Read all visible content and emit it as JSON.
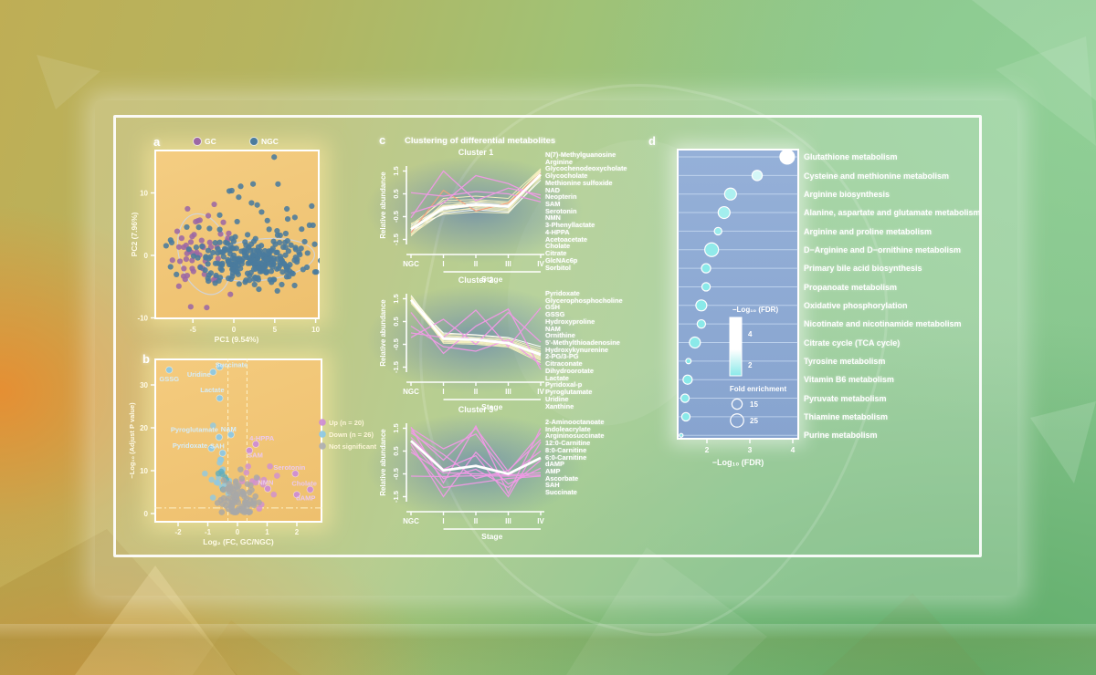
{
  "figure": {
    "panels": {
      "a": {
        "letter": "a"
      },
      "b": {
        "letter": "b"
      },
      "c": {
        "letter": "c",
        "title": "Clustering of differential metabolites"
      },
      "d": {
        "letter": "d"
      }
    }
  },
  "chart_data": [
    {
      "id": "pca",
      "type": "scatter",
      "xlabel": "PC1 (9.54%)",
      "ylabel": "PC2 (7.96%)",
      "xticks": [
        -5,
        0,
        5,
        10
      ],
      "yticks": [
        -10,
        0,
        10
      ],
      "xlim": [
        -9.7,
        10.5
      ],
      "ylim": [
        -10.3,
        17.0
      ],
      "legend": [
        {
          "label": "GC",
          "color": "#9c68a4"
        },
        {
          "label": "NGC",
          "color": "#4a7b9d"
        }
      ],
      "point_groups": [
        {
          "name": "GC",
          "color": "#9c68a4",
          "n": 55,
          "cx": -3.9,
          "cy": 0.6,
          "sx": 1.9,
          "sy": 3.4,
          "seed": 11
        },
        {
          "name": "NGC-core",
          "color": "#4a7b9d",
          "n": 240,
          "cx": 2.3,
          "cy": -0.9,
          "sx": 3.2,
          "sy": 1.9,
          "seed": 22
        },
        {
          "name": "NGC-spread",
          "color": "#4a7b9d",
          "n": 55,
          "cx": 1.0,
          "cy": 3.5,
          "sx": 4.8,
          "sy": 4.2,
          "seed": 33
        }
      ],
      "ellipses": [
        {
          "cx": -3.6,
          "cy": 0.2,
          "rx": 3.1,
          "ry": 6.6,
          "rot": -15
        },
        {
          "cx": 3.2,
          "cy": -0.7,
          "rx": 6.7,
          "ry": 3.3,
          "rot": -6
        }
      ]
    },
    {
      "id": "volcano",
      "type": "scatter",
      "xlabel": "Log₂ (FC, GC/NGC)",
      "ylabel": "−Log₁₀ (Adjust P value)",
      "xticks": [
        -2,
        -1,
        0,
        1,
        2
      ],
      "yticks": [
        0,
        10,
        20,
        30
      ],
      "xlim": [
        -2.85,
        2.85
      ],
      "ylim": [
        0,
        36.2
      ],
      "thresholds": {
        "vlines": [
          -0.32,
          0.32
        ],
        "hline": 1.3
      },
      "legend": [
        {
          "label": "Up (n = 20)",
          "color": "#cf8ed3"
        },
        {
          "label": "Down (n = 26)",
          "color": "#8ec9e4"
        },
        {
          "label": "Not significant",
          "color": "#b0b0b0"
        }
      ],
      "group_colors": {
        "up": "#cf8ed3",
        "down": "#8ec9e4",
        "ns": "#a8a8a8",
        "teal": "#62aebc"
      },
      "labeled_points": [
        {
          "name": "GSSG",
          "x": -2.3,
          "y": 33.5,
          "group": "down",
          "lx": -2.3,
          "ly": 31.4
        },
        {
          "name": "Uridine",
          "x": -0.82,
          "y": 33.0,
          "group": "down",
          "lx": -1.3,
          "ly": 32.4
        },
        {
          "name": "Succinate",
          "x": -0.6,
          "y": 34.2,
          "group": "down",
          "lx": -0.2,
          "ly": 34.7
        },
        {
          "name": "Lactate",
          "x": -0.6,
          "y": 26.9,
          "group": "down",
          "lx": -0.85,
          "ly": 28.8
        },
        {
          "name": "Pyroglutamate",
          "x": -0.62,
          "y": 17.8,
          "group": "down",
          "lx": -1.45,
          "ly": 19.6
        },
        {
          "name": "NAM",
          "x": -0.22,
          "y": 18.4,
          "group": "down",
          "lx": -0.3,
          "ly": 19.7
        },
        {
          "name": "Pyridoxate",
          "x": -0.88,
          "y": 15.2,
          "group": "down",
          "lx": -1.6,
          "ly": 15.9
        },
        {
          "name": "SAH",
          "x": -0.5,
          "y": 14.1,
          "group": "down",
          "lx": -0.68,
          "ly": 15.7
        },
        {
          "name": "4-HPPA",
          "x": 0.62,
          "y": 16.2,
          "group": "up",
          "lx": 0.82,
          "ly": 17.6
        },
        {
          "name": "SAM",
          "x": 0.4,
          "y": 14.7,
          "group": "up",
          "lx": 0.6,
          "ly": 13.6
        },
        {
          "name": "Serotonin",
          "x": 1.95,
          "y": 9.3,
          "group": "up",
          "lx": 1.75,
          "ly": 10.7
        },
        {
          "name": "NMN",
          "x": 1.02,
          "y": 5.8,
          "group": "up",
          "lx": 0.95,
          "ly": 7.2
        },
        {
          "name": "Cholate",
          "x": 2.45,
          "y": 5.6,
          "group": "up",
          "lx": 2.25,
          "ly": 7.0
        },
        {
          "name": "dAMP",
          "x": 2.0,
          "y": 4.4,
          "group": "up",
          "lx": 2.3,
          "ly": 3.6
        }
      ],
      "clouds": [
        {
          "group": "down",
          "n": 16,
          "cx": -0.72,
          "cy": 8.8,
          "sx": 0.3,
          "sy": 3.3,
          "seed": 5
        },
        {
          "group": "teal",
          "n": 6,
          "cx": -0.45,
          "cy": 8.0,
          "sx": 0.1,
          "sy": 1.8,
          "seed": 9
        },
        {
          "group": "up",
          "n": 13,
          "cx": 0.55,
          "cy": 6.5,
          "sx": 0.28,
          "sy": 3.1,
          "seed": 6
        },
        {
          "group": "ns",
          "n": 85,
          "cx": 0.0,
          "cy": 3.4,
          "sx": 0.3,
          "sy": 2.6,
          "seed": 7
        }
      ]
    },
    {
      "id": "clusters",
      "type": "line",
      "xlabel": "Stage",
      "ylabel": "Relative abundance",
      "categories": [
        "NGC",
        "I",
        "II",
        "III",
        "IV"
      ],
      "yticks": [
        1.5,
        0.5,
        -0.5,
        -1.5
      ],
      "line_colors": {
        "pale": "#f5efc0",
        "white": "#ffffff",
        "pink": "#f09ae6",
        "salmon": "#f0a080",
        "mean": "#ffffff"
      },
      "clusters": [
        {
          "title": "Cluster 1",
          "metabolites": [
            "N(7)-Methylguanosine",
            "Arginine",
            "Glycochenodeoxycholate",
            "Glycocholate",
            "Methionine sulfoxide",
            "NAD",
            "Neopterin",
            "SAM",
            "Serotonin",
            "NMN",
            "3-Phenyllactate",
            "4-HPPA",
            "Acetoacetate",
            "Cholate",
            "Citrate",
            "GlcNAc6p",
            "Sorbitol"
          ],
          "mean": [
            -1.05,
            -0.12,
            0.02,
            -0.05,
            1.35
          ],
          "lines": [
            {
              "c": "pale",
              "v": [
                -1.3,
                -0.3,
                -0.1,
                -0.2,
                1.5
              ]
            },
            {
              "c": "pale",
              "v": [
                -1.2,
                0.1,
                0.15,
                0.1,
                1.55
              ]
            },
            {
              "c": "white",
              "v": [
                -1.1,
                -0.2,
                0,
                -0.1,
                1.45
              ]
            },
            {
              "c": "pale",
              "v": [
                -0.95,
                -0.4,
                -0.3,
                -0.35,
                1.2
              ]
            },
            {
              "c": "pale",
              "v": [
                -1.0,
                0.3,
                0.4,
                0.3,
                1.6
              ]
            },
            {
              "c": "white",
              "v": [
                -0.9,
                -0.05,
                0.1,
                0,
                1.3
              ]
            },
            {
              "c": "pale",
              "v": [
                -1.25,
                -0.15,
                -0.05,
                -0.15,
                1.4
              ]
            },
            {
              "c": "pale",
              "v": [
                -0.85,
                0.2,
                0.25,
                0.15,
                1.5
              ]
            },
            {
              "c": "white",
              "v": [
                -1.15,
                -0.35,
                -0.2,
                -0.3,
                1.1
              ]
            },
            {
              "c": "pale",
              "v": [
                -1.05,
                0,
                0.05,
                -0.05,
                1.25
              ]
            },
            {
              "c": "pale",
              "v": [
                -0.8,
                -0.25,
                -0.15,
                -0.25,
                1.35
              ]
            },
            {
              "c": "pale",
              "v": [
                -1.35,
                -0.05,
                0.2,
                0.05,
                1.6
              ]
            },
            {
              "c": "salmon",
              "v": [
                -1.2,
                0.65,
                -0.25,
                0.1,
                1.4
              ]
            },
            {
              "c": "pink",
              "v": [
                -0.55,
                1.5,
                0.2,
                0.75,
                0.45
              ]
            },
            {
              "c": "pink",
              "v": [
                -0.35,
                0.1,
                1.3,
                0.95,
                0.3
              ]
            },
            {
              "c": "pink",
              "v": [
                0.55,
                0.4,
                0.6,
                0.5,
                0.15
              ]
            }
          ]
        },
        {
          "title": "Cluster 2",
          "metabolites": [
            "Pyridoxate",
            "Glycerophosphocholine",
            "GSH",
            "GSSG",
            "Hydroxyproline",
            "NAM",
            "Ornithine",
            "5'-Methylthioadenosine",
            "Hydroxykynurenine",
            "2-PG/3-PG",
            "Citraconate",
            "Dihydroorotate",
            "Lactate",
            "Pyridoxal-p",
            "Pyroglutamate",
            "Uridine",
            "Xanthine"
          ],
          "mean": [
            1.45,
            -0.25,
            -0.3,
            -0.45,
            -0.95
          ],
          "lines": [
            {
              "c": "pale",
              "v": [
                1.6,
                -0.1,
                -0.2,
                -0.3,
                -0.8
              ]
            },
            {
              "c": "pale",
              "v": [
                1.5,
                -0.35,
                -0.4,
                -0.55,
                -1.1
              ]
            },
            {
              "c": "white",
              "v": [
                1.4,
                -0.2,
                -0.25,
                -0.4,
                -0.9
              ]
            },
            {
              "c": "pale",
              "v": [
                1.55,
                -0.05,
                -0.1,
                -0.25,
                -0.7
              ]
            },
            {
              "c": "pale",
              "v": [
                1.35,
                -0.4,
                -0.45,
                -0.6,
                -1.2
              ]
            },
            {
              "c": "white",
              "v": [
                1.65,
                -0.25,
                -0.3,
                -0.45,
                -1.0
              ]
            },
            {
              "c": "pale",
              "v": [
                1.45,
                -0.15,
                -0.2,
                -0.35,
                -0.85
              ]
            },
            {
              "c": "pale",
              "v": [
                1.3,
                -0.3,
                -0.38,
                -0.5,
                -1.05
              ]
            },
            {
              "c": "pale",
              "v": [
                1.55,
                -0.45,
                -0.5,
                -0.62,
                -1.3
              ]
            },
            {
              "c": "white",
              "v": [
                1.4,
                0,
                -0.08,
                -0.2,
                -0.6
              ]
            },
            {
              "c": "pale",
              "v": [
                1.5,
                -0.28,
                -0.33,
                -0.48,
                -0.95
              ]
            },
            {
              "c": "pale",
              "v": [
                1.6,
                -0.38,
                -0.42,
                -0.55,
                -1.15
              ]
            },
            {
              "c": "pink",
              "v": [
                0,
                -0.2,
                1.0,
                -0.6,
                1.1
              ]
            },
            {
              "c": "pink",
              "v": [
                0.9,
                -0.9,
                0.3,
                1.05,
                -1.6
              ]
            },
            {
              "c": "pink",
              "v": [
                -0.2,
                0.6,
                -0.5,
                0.9,
                -0.4
              ]
            },
            {
              "c": "pink",
              "v": [
                0.3,
                -0.6,
                -0.8,
                -0.3,
                -1.4
              ]
            }
          ]
        },
        {
          "title": "Cluster 3",
          "metabolites": [
            "2-Aminooctanoate",
            "Indoleacrylate",
            "Argininosuccinate",
            "12:0-Carnitine",
            "8:0-Carnitine",
            "6:0-Carnitine",
            "dAMP",
            "AMP",
            "Ascorbate",
            "SAH",
            "Succinate"
          ],
          "mean": [
            0.95,
            -0.35,
            -0.15,
            -0.5,
            0.2
          ],
          "lines": [
            {
              "c": "pink",
              "v": [
                1.55,
                -0.9,
                1.6,
                -1.35,
                1.5
              ]
            },
            {
              "c": "pink",
              "v": [
                1.3,
                0.35,
                -0.7,
                -0.35,
                1.0
              ]
            },
            {
              "c": "pink",
              "v": [
                0.8,
                -1.5,
                0.45,
                -0.95,
                -0.25
              ]
            },
            {
              "c": "pink",
              "v": [
                1.5,
                0.6,
                1.25,
                -0.6,
                0.5
              ]
            },
            {
              "c": "pink",
              "v": [
                0.45,
                -0.45,
                -0.5,
                -0.55,
                -0.45
              ]
            },
            {
              "c": "pink",
              "v": [
                -0.6,
                -0.62,
                -0.58,
                -0.6,
                -0.55
              ]
            },
            {
              "c": "pink",
              "v": [
                1.1,
                -0.3,
                0.3,
                -1.5,
                0.9
              ]
            },
            {
              "c": "pink",
              "v": [
                0.6,
                -1.1,
                -0.9,
                -0.7,
                -0.6
              ]
            },
            {
              "c": "pink",
              "v": [
                1.4,
                0.1,
                1.5,
                -0.4,
                1.3
              ]
            },
            {
              "c": "pink",
              "v": [
                0.9,
                -0.7,
                -0.3,
                -1.1,
                0.1
              ]
            }
          ]
        }
      ]
    },
    {
      "id": "enrichment",
      "type": "bubble",
      "xlabel": "−Log₁₀ (FDR)",
      "xticks": [
        2,
        3,
        4
      ],
      "xlim": [
        1.3,
        4.15
      ],
      "color_legend": {
        "title": "−Log₁₀ (FDR)",
        "ticks": [
          4,
          2
        ],
        "high_color": "#ffffff",
        "low_color": "#8ae9e9"
      },
      "size_legend": {
        "title": "Fold enrichment",
        "sizes": [
          15,
          25
        ]
      },
      "rows": [
        {
          "pathway": "Glutathione metabolism",
          "neglog_fdr": 3.87,
          "fold": 30
        },
        {
          "pathway": "Cysteine and methionine metabolism",
          "neglog_fdr": 3.17,
          "fold": 15
        },
        {
          "pathway": "Arginine biosynthesis",
          "neglog_fdr": 2.55,
          "fold": 20
        },
        {
          "pathway": "Alanine, aspartate and glutamate metabolism",
          "neglog_fdr": 2.4,
          "fold": 20
        },
        {
          "pathway": "Arginine and proline metabolism",
          "neglog_fdr": 2.26,
          "fold": 8
        },
        {
          "pathway": "D−Arginine and D−ornithine metabolism",
          "neglog_fdr": 2.11,
          "fold": 27
        },
        {
          "pathway": "Primary bile acid biosynthesis",
          "neglog_fdr": 1.98,
          "fold": 12
        },
        {
          "pathway": "Propanoate metabolism",
          "neglog_fdr": 1.98,
          "fold": 10
        },
        {
          "pathway": "Oxidative phosphorylation",
          "neglog_fdr": 1.87,
          "fold": 17
        },
        {
          "pathway": "Nicotinate and nicotinamide metabolism",
          "neglog_fdr": 1.87,
          "fold": 10
        },
        {
          "pathway": "Citrate cycle (TCA cycle)",
          "neglog_fdr": 1.72,
          "fold": 17
        },
        {
          "pathway": "Tyrosine metabolism",
          "neglog_fdr": 1.57,
          "fold": 4
        },
        {
          "pathway": "Vitamin B6 metabolism",
          "neglog_fdr": 1.55,
          "fold": 12
        },
        {
          "pathway": "Pyruvate metabolism",
          "neglog_fdr": 1.49,
          "fold": 10
        },
        {
          "pathway": "Thiamine metabolism",
          "neglog_fdr": 1.51,
          "fold": 10
        },
        {
          "pathway": "Purine metabolism",
          "neglog_fdr": 1.4,
          "fold": 2
        }
      ]
    }
  ]
}
